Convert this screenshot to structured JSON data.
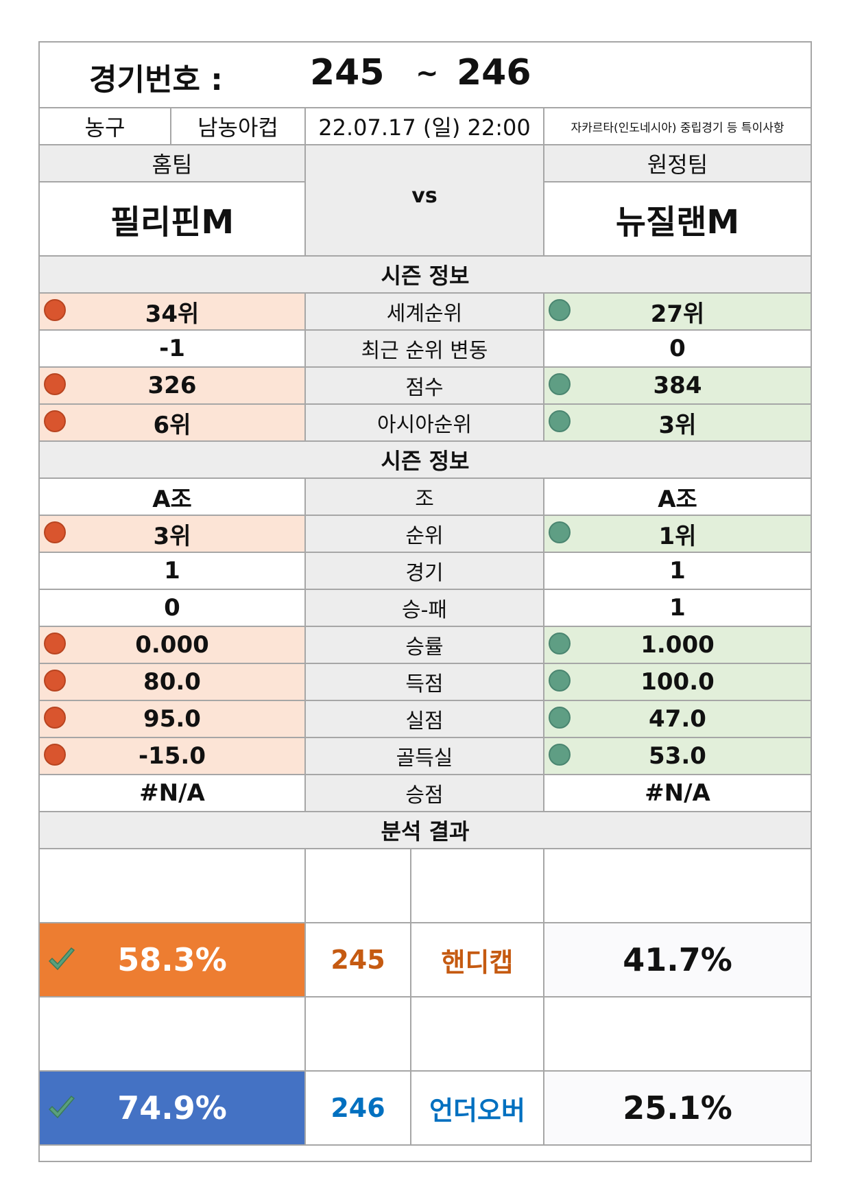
{
  "header": {
    "title_label": "경기번호 :",
    "game_from": "245",
    "tilde": "~",
    "game_to": "246"
  },
  "info": {
    "sport": "농구",
    "league": "남농아컵",
    "datetime": "22.07.17 (일) 22:00",
    "note": "자카르타(인도네시아) 중립경기 등 특이사항"
  },
  "teams": {
    "home_label": "홈팀",
    "away_label": "원정팀",
    "vs": "vs",
    "home_name": "필리핀M",
    "away_name": "뉴질랜M"
  },
  "section1_title": "시즌 정보",
  "rows1": [
    {
      "label": "세계순위",
      "home": "34위",
      "away": "27위",
      "marked": true
    },
    {
      "label": "최근 순위 변동",
      "home": "-1",
      "away": "0",
      "marked": false
    },
    {
      "label": "점수",
      "home": "326",
      "away": "384",
      "marked": true
    },
    {
      "label": "아시아순위",
      "home": "6위",
      "away": "3위",
      "marked": true
    }
  ],
  "section2_title": "시즌 정보",
  "rows2": [
    {
      "label": "조",
      "home": "A조",
      "away": "A조",
      "marked": false
    },
    {
      "label": "순위",
      "home": "3위",
      "away": "1위",
      "marked": true
    },
    {
      "label": "경기",
      "home": "1",
      "away": "1",
      "marked": false
    },
    {
      "label": "승-패",
      "home": "0",
      "away": "1",
      "marked": false
    },
    {
      "label": "승률",
      "home": "0.000",
      "away": "1.000",
      "marked": true
    },
    {
      "label": "득점",
      "home": "80.0",
      "away": "100.0",
      "marked": true
    },
    {
      "label": "실점",
      "home": "95.0",
      "away": "47.0",
      "marked": true
    },
    {
      "label": "골득실",
      "home": "-15.0",
      "away": "53.0",
      "marked": true
    },
    {
      "label": "승점",
      "home": "#N/A",
      "away": "#N/A",
      "marked": false
    }
  ],
  "section3_title": "분석 결과",
  "results": [
    {
      "home_pct": "58.3%",
      "game": "245",
      "type": "핸디캡",
      "away_pct": "41.7%",
      "fill": "#ed7d31",
      "accent": "#c55a11"
    },
    {
      "home_pct": "74.9%",
      "game": "246",
      "type": "언더오버",
      "away_pct": "25.1%",
      "fill": "#4472c4",
      "accent": "#0070c0"
    }
  ],
  "colors": {
    "home_fill": "#fce4d6",
    "away_fill": "#e2efda",
    "home_dot": "#d9552e",
    "away_dot": "#5f9e84",
    "section_fill": "#ededed",
    "check": "#5aa07c"
  }
}
